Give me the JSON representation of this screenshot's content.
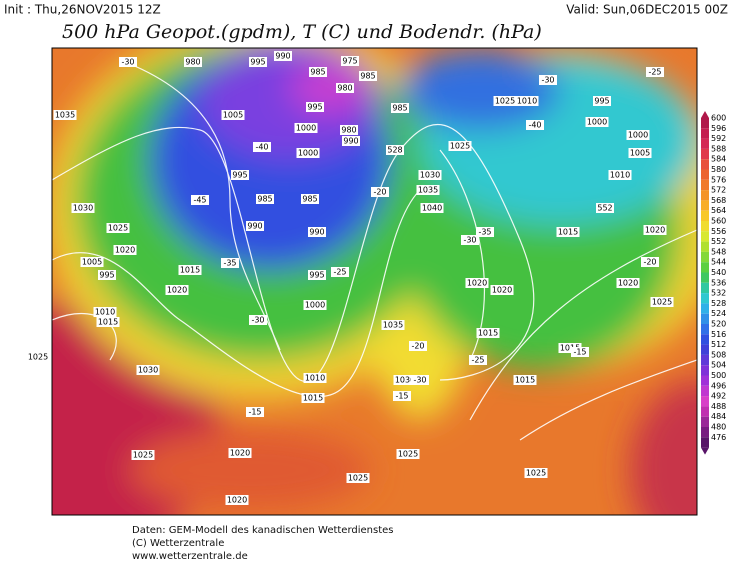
{
  "header": {
    "init": "Init : Thu,26NOV2015 12Z",
    "valid": "Valid: Sun,06DEC2015 00Z",
    "title": "500 hPa Geopot.(gpdm), T (C) und Bodendr. (hPa)"
  },
  "map": {
    "labels": [
      "1035",
      "1030",
      "1025",
      "1020",
      "1005",
      "995",
      "1010",
      "1015",
      "1025",
      "1030",
      "1025",
      "1020",
      "1020",
      "1025",
      "1025",
      "1010",
      "1015",
      "1035",
      "1030",
      "1040",
      "1035",
      "1030",
      "1025",
      "1020",
      "1020",
      "1015",
      "1015",
      "1015",
      "1015",
      "1020",
      "1020",
      "1025",
      "1025",
      "1025",
      "1010",
      "995",
      "1000",
      "1000",
      "1005",
      "1010",
      "1005",
      "1000",
      "1000",
      "995",
      "985",
      "985",
      "990",
      "990",
      "995",
      "1000",
      "1015",
      "1020",
      "980",
      "995",
      "990",
      "985",
      "980",
      "975",
      "985",
      "980",
      "990",
      "995",
      "985",
      "-30",
      "-40",
      "-45",
      "-35",
      "-30",
      "-25",
      "-20",
      "-15",
      "-15",
      "-20",
      "-25",
      "-30",
      "-35",
      "-40",
      "-30",
      "-25",
      "-20",
      "-15",
      "-30",
      "552",
      "528"
    ]
  },
  "colorbar": {
    "ticks": [
      600,
      596,
      592,
      588,
      584,
      580,
      576,
      572,
      568,
      564,
      560,
      556,
      552,
      548,
      544,
      540,
      536,
      532,
      528,
      524,
      520,
      516,
      512,
      508,
      504,
      500,
      496,
      492,
      488,
      484,
      480,
      476
    ]
  },
  "footer": {
    "lines": [
      "Daten: GEM-Modell des kanadischen Wetterdienstes",
      "(C) Wetterzentrale",
      "www.wetterzentrale.de"
    ]
  }
}
